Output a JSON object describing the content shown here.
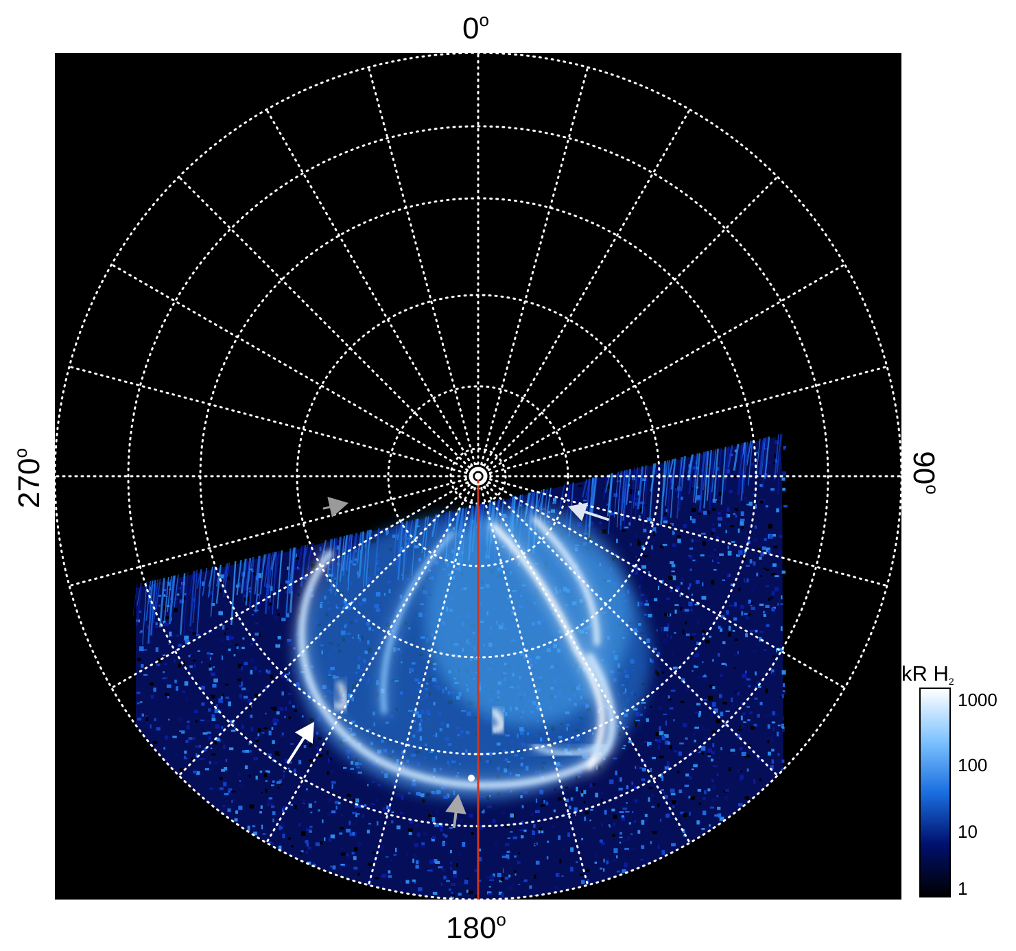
{
  "figure": {
    "labels": {
      "top": "0",
      "right": "90",
      "bottom": "180",
      "left": "270",
      "degree_symbol": "o"
    },
    "grid": {
      "longitude_spacing_deg": 15,
      "style": "white dotted"
    },
    "meridian_line": {
      "color": "#d0361c",
      "longitude": "180"
    },
    "arrows": [
      {
        "name": "white-arrow-left",
        "color": "#ffffff"
      },
      {
        "name": "white-arrow-right",
        "color": "#dde6f2"
      },
      {
        "name": "gray-arrow-upper-left",
        "color": "#9a9a9a"
      },
      {
        "name": "gray-arrow-bottom",
        "color": "#a8a8a8"
      }
    ],
    "colors": {
      "background": "#000000",
      "low_emission": "#0a1aa0",
      "mid_emission": "#2b8ae8",
      "high_emission": "#ffffff"
    }
  },
  "colorbar": {
    "title": "kR H",
    "subscript": "2",
    "scale": "log",
    "ticks": [
      "1000",
      "100",
      "10",
      "1"
    ],
    "range": [
      1,
      1500
    ],
    "colors": [
      "#000000",
      "#00106e",
      "#1a6fe0",
      "#7fc3ff",
      "#ffffff"
    ]
  }
}
